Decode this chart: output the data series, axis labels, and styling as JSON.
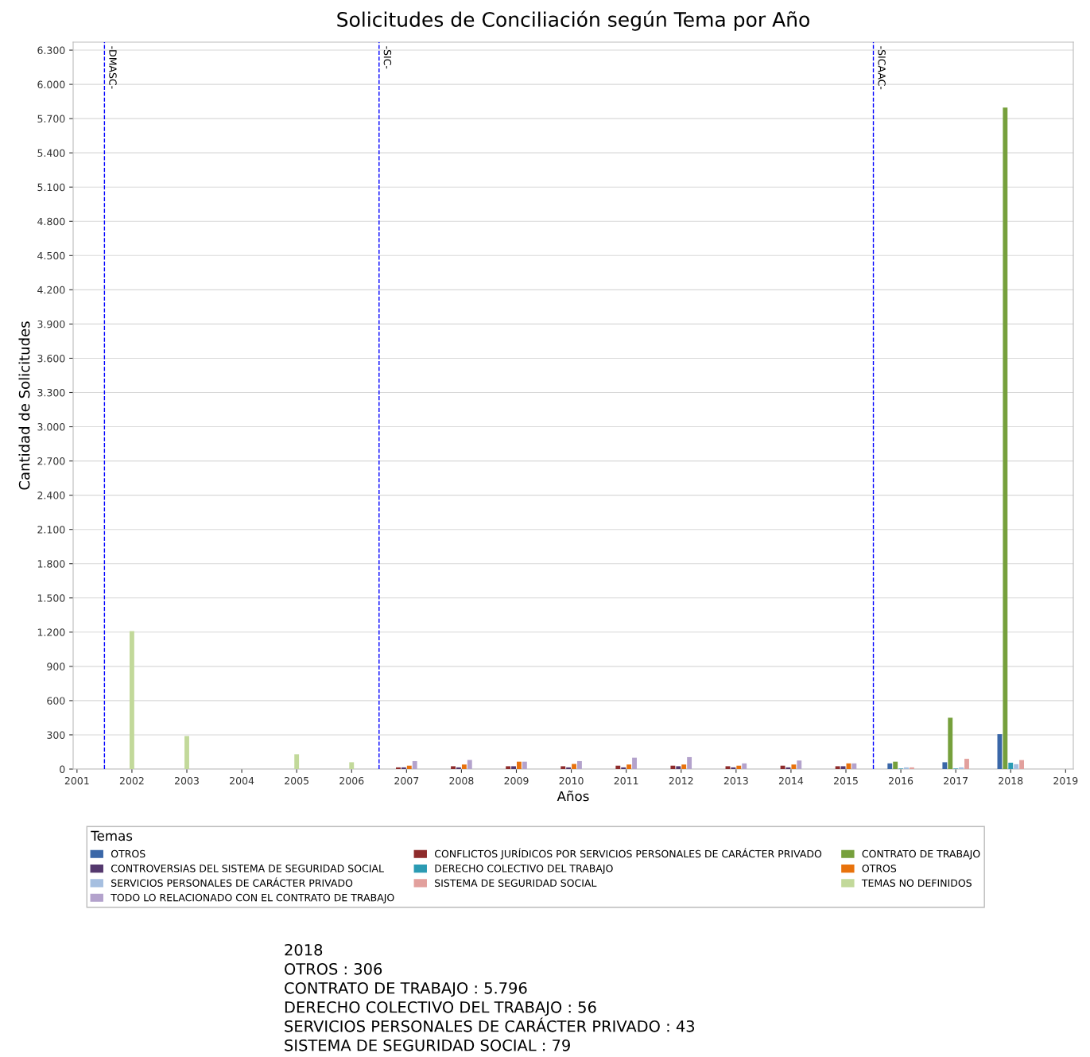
{
  "chart_data": {
    "type": "bar",
    "title": "Solicitudes de Conciliación según Tema por Año",
    "xlabel": "Años",
    "ylabel": "Cantidad de Solicitudes",
    "legend_title": "Temas",
    "xlim": [
      2000.93,
      2019.14
    ],
    "xticks": [
      2001,
      2002,
      2003,
      2004,
      2005,
      2006,
      2007,
      2008,
      2009,
      2010,
      2011,
      2012,
      2013,
      2014,
      2015,
      2016,
      2017,
      2018,
      2019
    ],
    "ylim": [
      0,
      6370
    ],
    "yticks": [
      0,
      300,
      600,
      900,
      {
        "value": 1200,
        "label": "1.200"
      },
      {
        "value": 1500,
        "label": "1.500"
      },
      {
        "value": 1800,
        "label": "1.800"
      },
      {
        "value": 2100,
        "label": "2.100"
      },
      {
        "value": 2400,
        "label": "2.400"
      },
      {
        "value": 2700,
        "label": "2.700"
      },
      {
        "value": 3000,
        "label": "3.000"
      },
      {
        "value": 3300,
        "label": "3.300"
      },
      {
        "value": 3600,
        "label": "3.600"
      },
      {
        "value": 3900,
        "label": "3.900"
      },
      {
        "value": 4200,
        "label": "4.200"
      },
      {
        "value": 4500,
        "label": "4.500"
      },
      {
        "value": 4800,
        "label": "4.800"
      },
      {
        "value": 5100,
        "label": "5.100"
      },
      {
        "value": 5400,
        "label": "5.400"
      },
      {
        "value": 5700,
        "label": "5.700"
      },
      {
        "value": 6000,
        "label": "6.000"
      },
      {
        "value": 6300,
        "label": "6.300"
      }
    ],
    "grid": "y",
    "legend": "bottom",
    "series": [
      {
        "name": "OTROS",
        "color": "#3a67a8",
        "x": [
          2016,
          2017,
          2018
        ],
        "values": [
          50,
          60,
          306
        ]
      },
      {
        "name": "CONFLICTOS JURÍDICOS POR SERVICIOS PERSONALES DE CARÁCTER PRIVADO",
        "color": "#8e2b2b",
        "x": [
          2007,
          2008,
          2009,
          2010,
          2011,
          2012,
          2013,
          2014,
          2015
        ],
        "values": [
          15,
          25,
          25,
          25,
          30,
          30,
          25,
          30,
          25
        ]
      },
      {
        "name": "CONTRATO DE TRABAJO",
        "color": "#76a03c",
        "x": [
          2016,
          2017,
          2018
        ],
        "values": [
          65,
          450,
          5796
        ]
      },
      {
        "name": "CONTROVERSIAS DEL SISTEMA DE SEGURIDAD SOCIAL",
        "color": "#54386e",
        "x": [
          2007,
          2008,
          2009,
          2010,
          2011,
          2012,
          2013,
          2014,
          2015
        ],
        "values": [
          15,
          15,
          25,
          15,
          15,
          25,
          15,
          15,
          25
        ]
      },
      {
        "name": "DERECHO COLECTIVO DEL TRABAJO",
        "color": "#2b9bb3",
        "x": [
          2016,
          2017,
          2018
        ],
        "values": [
          5,
          5,
          56
        ]
      },
      {
        "name": "OTROS",
        "color": "#e8720c",
        "x": [
          2007,
          2008,
          2009,
          2010,
          2011,
          2012,
          2013,
          2014,
          2015
        ],
        "values": [
          30,
          40,
          65,
          45,
          40,
          40,
          30,
          40,
          50
        ]
      },
      {
        "name": "SERVICIOS PERSONALES DE CARÁCTER PRIVADO",
        "color": "#a6bfe0",
        "x": [
          2016,
          2017,
          2018
        ],
        "values": [
          15,
          15,
          43
        ]
      },
      {
        "name": "SISTEMA DE SEGURIDAD SOCIAL",
        "color": "#e2a09d",
        "x": [
          2016,
          2017,
          2018
        ],
        "values": [
          15,
          90,
          79
        ]
      },
      {
        "name": "TEMAS NO DEFINIDOS",
        "color": "#c2d99a",
        "x": [
          2002,
          2003,
          2005,
          2006
        ],
        "values": [
          1210,
          290,
          130,
          60
        ]
      },
      {
        "name": "TODO LO RELACIONADO CON EL CONTRATO DE TRABAJO",
        "color": "#b3a2cc",
        "x": [
          2007,
          2008,
          2009,
          2010,
          2011,
          2012,
          2013,
          2014,
          2015
        ],
        "values": [
          70,
          80,
          65,
          70,
          100,
          105,
          50,
          75,
          50
        ]
      }
    ],
    "ref_lines": [
      {
        "axis": "x",
        "value": 2001.5,
        "label": "-DMASC-",
        "color": "#0000ff",
        "line_style": "dashed"
      },
      {
        "axis": "x",
        "value": 2006.5,
        "label": "-SIC-",
        "color": "#0000ff",
        "line_style": "dashed"
      },
      {
        "axis": "x",
        "value": 2015.5,
        "label": "-SICAAC-",
        "color": "#0000ff",
        "line_style": "dashed"
      }
    ],
    "annotations": [
      "2018",
      "OTROS : 306",
      "CONTRATO DE TRABAJO : 5.796",
      "DERECHO COLECTIVO DEL TRABAJO : 56",
      "SERVICIOS PERSONALES DE CARÁCTER PRIVADO : 43",
      "SISTEMA DE SEGURIDAD SOCIAL : 79"
    ]
  }
}
